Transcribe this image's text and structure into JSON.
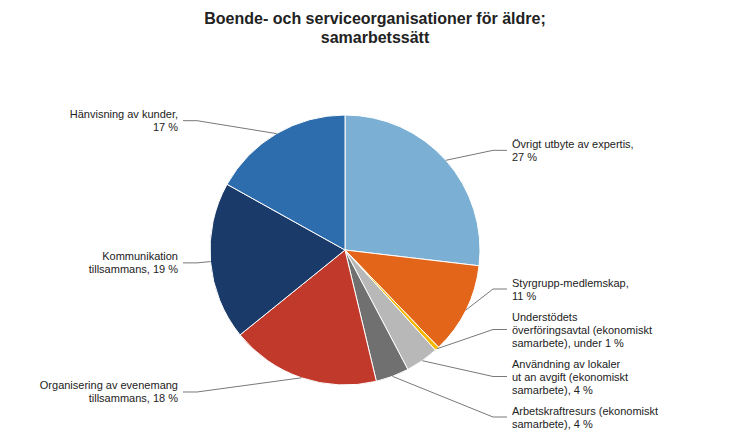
{
  "chart_data": {
    "type": "pie",
    "title": "Boende- och serviceorganisationer för äldre;\nsamarbetssätt",
    "categories": [
      "Övrigt utbyte av expertis,\n27 %",
      "Styrgrupp-medlemskap,\n11 %",
      "Understödets\növerföringsavtal (ekonomiskt\nsamarbete), under 1 %",
      "Användning av lokaler\nut an avgift (ekonomiskt\nsamarbete), 4 %",
      "Arbetskraftresurs (ekonomiskt\nsamarbete), 4 %",
      "Organisering av evenemang\ntillsammans, 18 %",
      "Kommunikation\ntillsammans, 19 %",
      "Hänvisning av kunder,\n17 %"
    ],
    "values": [
      27,
      11,
      0.5,
      4,
      4,
      18,
      19,
      17
    ],
    "colors": [
      "#7BAFD4",
      "#E2651A",
      "#F5B800",
      "#B8B8B8",
      "#707070",
      "#C0392B",
      "#1A3A6A",
      "#2E6DAD"
    ]
  }
}
